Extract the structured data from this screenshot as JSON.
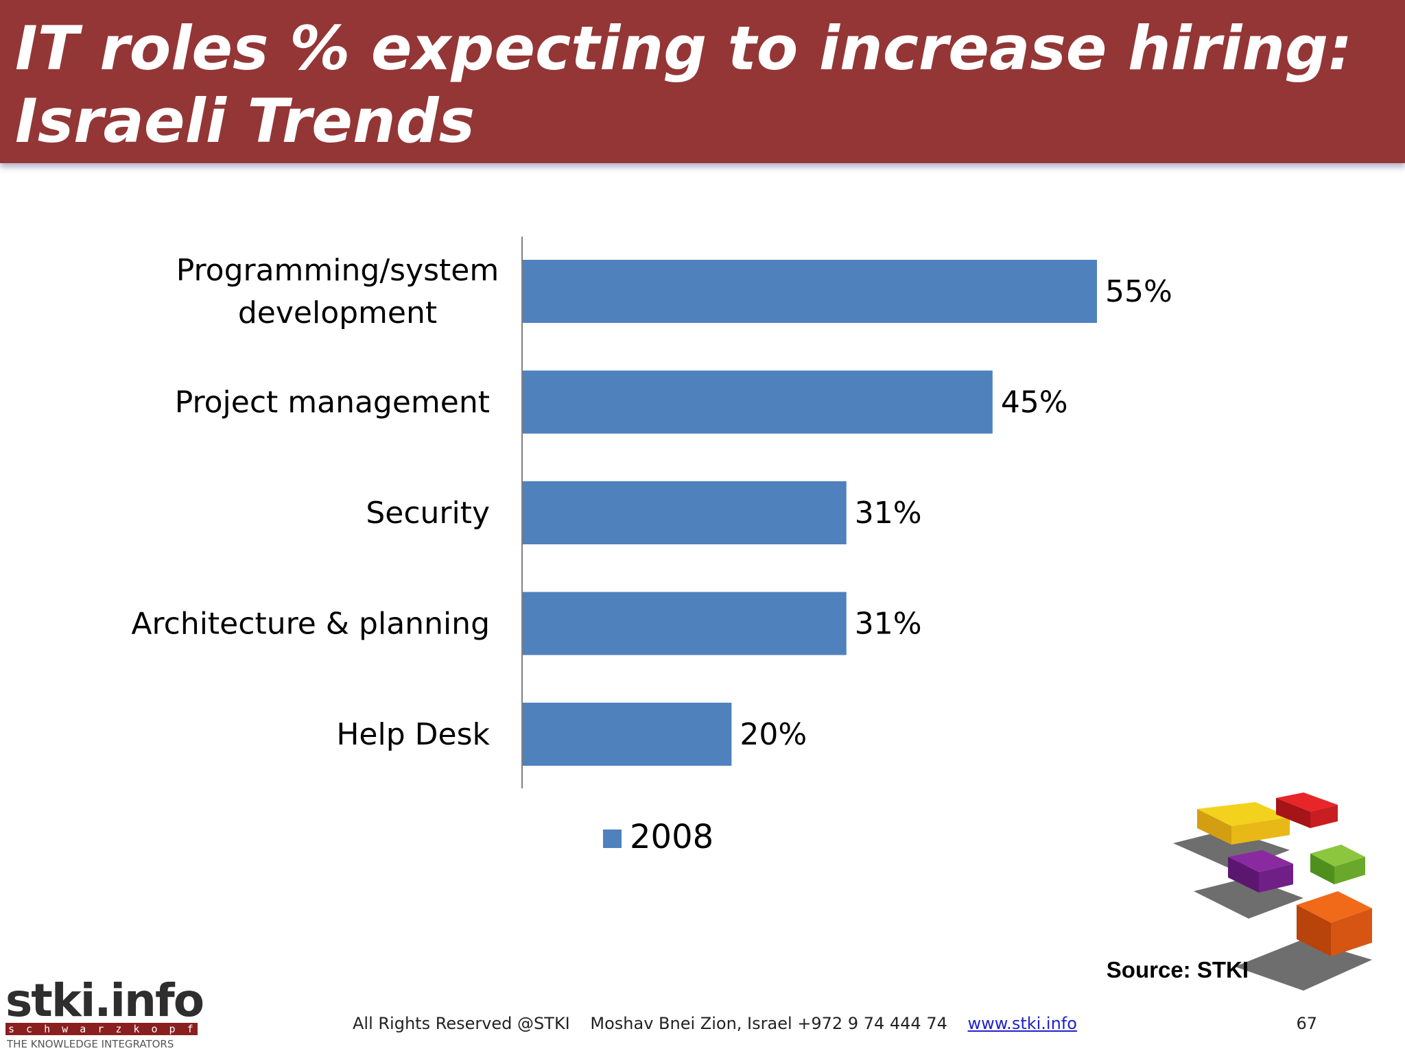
{
  "slide": {
    "title": "IT roles % expecting to increase hiring:\nIsraeli Trends",
    "source": "Source: STKI",
    "footer": {
      "rights": "All Rights Reserved @STKI",
      "address": "Moshav Bnei Zion, Israel +972 9 74 444 74",
      "website": "www.stki.info"
    },
    "page_number": "67",
    "logo": {
      "name": "stki.info",
      "subtitle": "s c h w a r z k o p f",
      "tagline": "THE KNOWLEDGE INTEGRATORS"
    }
  },
  "chart_data": {
    "type": "bar",
    "orientation": "horizontal",
    "categories": [
      "Programming/system development",
      "Project management",
      "Security",
      "Architecture & planning",
      "Help Desk"
    ],
    "category_lines": [
      [
        "Programming/system",
        "development"
      ],
      [
        "Project management"
      ],
      [
        "Security"
      ],
      [
        "Architecture & planning"
      ],
      [
        "Help Desk"
      ]
    ],
    "series": [
      {
        "name": "2008",
        "values": [
          55,
          45,
          31,
          31,
          20
        ],
        "data_labels": [
          "55%",
          "45%",
          "31%",
          "31%",
          "20%"
        ],
        "color": "#4f81bd"
      }
    ],
    "xlim": [
      0,
      100
    ],
    "grid": false,
    "legend": "bottom"
  },
  "colors": {
    "title_band": "#943636",
    "bar": "#4f81bd"
  }
}
